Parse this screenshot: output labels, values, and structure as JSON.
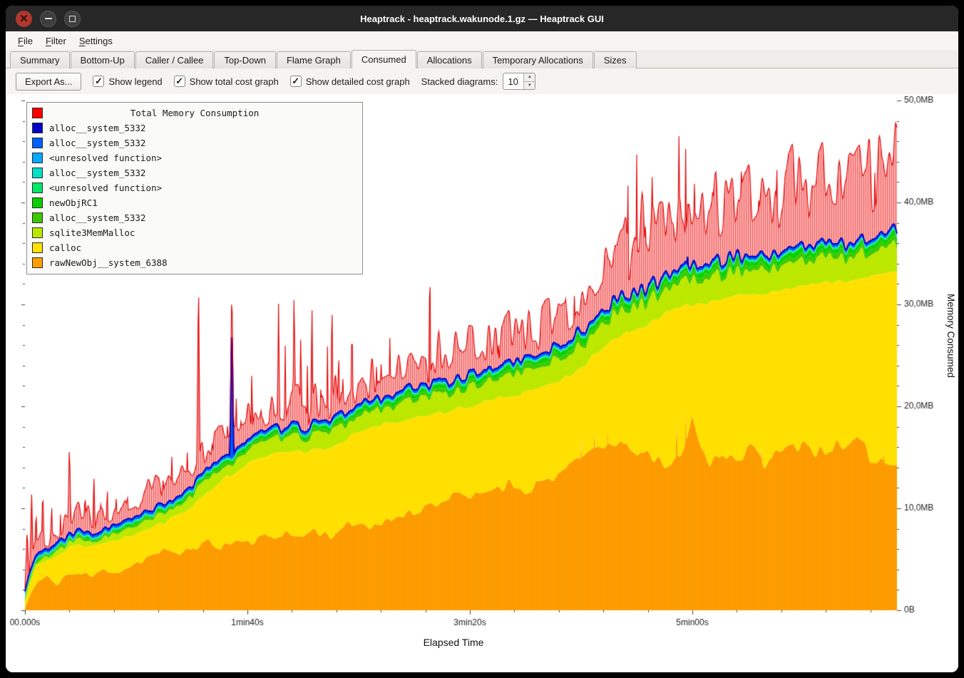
{
  "window": {
    "title": "Heaptrack - heaptrack.wakunode.1.gz — Heaptrack GUI"
  },
  "menu": {
    "items": [
      "File",
      "Filter",
      "Settings"
    ]
  },
  "tabs": {
    "items": [
      "Summary",
      "Bottom-Up",
      "Caller / Callee",
      "Top-Down",
      "Flame Graph",
      "Consumed",
      "Allocations",
      "Temporary Allocations",
      "Sizes"
    ],
    "active": "Consumed"
  },
  "toolbar": {
    "export_label": "Export As...",
    "checkboxes": [
      {
        "label": "Show legend",
        "checked": true
      },
      {
        "label": "Show total cost graph",
        "checked": true
      },
      {
        "label": "Show detailed cost graph",
        "checked": true
      }
    ],
    "stacked_label": "Stacked diagrams:",
    "stacked_value": "10"
  },
  "chart_data": {
    "type": "area",
    "stacked": true,
    "title": "Total Memory Consumption",
    "xlabel": "Elapsed Time",
    "ylabel": "Memory Consumed",
    "x_max_seconds": 392,
    "y_max_mb": 50,
    "x_ticks": [
      {
        "t": 0,
        "label": "00.000s"
      },
      {
        "t": 100,
        "label": "1min40s"
      },
      {
        "t": 200,
        "label": "3min20s"
      },
      {
        "t": 300,
        "label": "5min00s"
      }
    ],
    "x_minor_step_s": 20,
    "y_ticks": [
      {
        "mb": 0,
        "label": "0B"
      },
      {
        "mb": 10,
        "label": "10,0MB"
      },
      {
        "mb": 20,
        "label": "20,0MB"
      },
      {
        "mb": 30,
        "label": "30,0MB"
      },
      {
        "mb": 40,
        "label": "40,0MB"
      },
      {
        "mb": 50,
        "label": "50,0MB"
      }
    ],
    "y_minor_step_mb": 2,
    "legend": {
      "title": "Total Memory Consumption",
      "title_color": "#ff0000",
      "items": [
        {
          "label": "alloc__system_5332",
          "color": "#0000c8"
        },
        {
          "label": "alloc__system_5332",
          "color": "#0060ff"
        },
        {
          "label": "<unresolved function>",
          "color": "#00a8ff"
        },
        {
          "label": "alloc__system_5332",
          "color": "#00e0c8"
        },
        {
          "label": "<unresolved function>",
          "color": "#00e864"
        },
        {
          "label": "newObjRC1",
          "color": "#0ad000"
        },
        {
          "label": "alloc__system_5332",
          "color": "#3cc800"
        },
        {
          "label": "sqlite3MemMalloc",
          "color": "#bce800"
        },
        {
          "label": "calloc",
          "color": "#ffe000"
        },
        {
          "label": "rawNewObj__system_6388",
          "color": "#ffa000"
        }
      ]
    },
    "total_color": "#ff0000",
    "layers": {
      "orange_top_mb": [
        [
          0,
          0.2
        ],
        [
          3,
          1.8
        ],
        [
          6,
          2.8
        ],
        [
          10,
          3.2
        ],
        [
          14,
          2.6
        ],
        [
          18,
          3.4
        ],
        [
          24,
          3.6
        ],
        [
          30,
          3.3
        ],
        [
          36,
          4.0
        ],
        [
          42,
          3.8
        ],
        [
          48,
          4.4
        ],
        [
          55,
          5.2
        ],
        [
          62,
          5.8
        ],
        [
          68,
          5.4
        ],
        [
          75,
          6.2
        ],
        [
          82,
          6.6
        ],
        [
          88,
          6.2
        ],
        [
          95,
          6.8
        ],
        [
          100,
          6.5
        ],
        [
          108,
          7.2
        ],
        [
          115,
          7.6
        ],
        [
          122,
          7.2
        ],
        [
          130,
          7.8
        ],
        [
          138,
          7.4
        ],
        [
          145,
          8.2
        ],
        [
          152,
          8.6
        ],
        [
          158,
          8.2
        ],
        [
          165,
          9.0
        ],
        [
          172,
          9.4
        ],
        [
          180,
          10.2
        ],
        [
          188,
          10.8
        ],
        [
          195,
          11.2
        ],
        [
          202,
          11.0
        ],
        [
          210,
          12.0
        ],
        [
          218,
          12.4
        ],
        [
          225,
          11.8
        ],
        [
          232,
          12.6
        ],
        [
          240,
          13.4
        ],
        [
          247,
          14.2
        ],
        [
          254,
          15.6
        ],
        [
          260,
          16.4
        ],
        [
          266,
          15.8
        ],
        [
          272,
          16.2
        ],
        [
          278,
          15.2
        ],
        [
          284,
          14.6
        ],
        [
          290,
          13.8
        ],
        [
          296,
          16.2
        ],
        [
          300,
          18.8
        ],
        [
          304,
          15.8
        ],
        [
          308,
          14.4
        ],
        [
          314,
          15.6
        ],
        [
          320,
          14.8
        ],
        [
          326,
          15.8
        ],
        [
          332,
          14.6
        ],
        [
          338,
          15.2
        ],
        [
          344,
          16.0
        ],
        [
          350,
          16.6
        ],
        [
          356,
          15.4
        ],
        [
          362,
          16.2
        ],
        [
          368,
          15.6
        ],
        [
          374,
          16.4
        ],
        [
          380,
          15.2
        ],
        [
          386,
          14.6
        ],
        [
          392,
          14.2
        ]
      ],
      "orange_spikes": [
        [
          250,
          17.2
        ],
        [
          256,
          17.8
        ],
        [
          262,
          18.3
        ],
        [
          270,
          17.4
        ],
        [
          293,
          19.6
        ],
        [
          297,
          20.2
        ],
        [
          301,
          18.6
        ],
        [
          331,
          17.2
        ],
        [
          349,
          17.8
        ],
        [
          371,
          17.0
        ],
        [
          386,
          16.4
        ]
      ],
      "yellow_top_mb": [
        [
          0,
          0.6
        ],
        [
          2,
          2.5
        ],
        [
          5,
          4.6
        ],
        [
          10,
          5.0
        ],
        [
          15,
          5.2
        ],
        [
          20,
          6.2
        ],
        [
          26,
          6.4
        ],
        [
          32,
          6.6
        ],
        [
          40,
          6.9
        ],
        [
          48,
          7.4
        ],
        [
          55,
          7.8
        ],
        [
          62,
          8.6
        ],
        [
          70,
          9.6
        ],
        [
          78,
          10.8
        ],
        [
          85,
          12.2
        ],
        [
          90,
          13.0
        ],
        [
          95,
          13.6
        ],
        [
          100,
          14.6
        ],
        [
          105,
          15.0
        ],
        [
          112,
          15.5
        ],
        [
          120,
          15.8
        ],
        [
          128,
          15.6
        ],
        [
          135,
          16.0
        ],
        [
          142,
          16.4
        ],
        [
          150,
          17.6
        ],
        [
          158,
          18.0
        ],
        [
          165,
          18.4
        ],
        [
          172,
          18.8
        ],
        [
          180,
          19.0
        ],
        [
          188,
          19.4
        ],
        [
          196,
          19.9
        ],
        [
          204,
          20.3
        ],
        [
          212,
          20.7
        ],
        [
          220,
          21.2
        ],
        [
          228,
          21.6
        ],
        [
          236,
          22.3
        ],
        [
          244,
          22.9
        ],
        [
          252,
          24.2
        ],
        [
          258,
          25.4
        ],
        [
          264,
          26.4
        ],
        [
          270,
          27.2
        ],
        [
          278,
          27.8
        ],
        [
          285,
          28.6
        ],
        [
          292,
          29.6
        ],
        [
          298,
          30.0
        ],
        [
          306,
          30.2
        ],
        [
          314,
          30.6
        ],
        [
          322,
          30.9
        ],
        [
          330,
          31.1
        ],
        [
          338,
          31.4
        ],
        [
          346,
          31.6
        ],
        [
          354,
          31.9
        ],
        [
          362,
          32.1
        ],
        [
          370,
          32.4
        ],
        [
          378,
          32.6
        ],
        [
          385,
          32.9
        ],
        [
          392,
          33.2
        ]
      ],
      "sqlite_thickness_mb": [
        [
          0,
          0.3
        ],
        [
          30,
          0.5
        ],
        [
          60,
          0.8
        ],
        [
          85,
          1.2
        ],
        [
          120,
          1.4
        ],
        [
          160,
          1.6
        ],
        [
          200,
          1.9
        ],
        [
          250,
          2.2
        ],
        [
          300,
          2.4
        ],
        [
          392,
          2.4
        ]
      ],
      "green_thickness_mb": [
        [
          0,
          0.25
        ],
        [
          60,
          0.4
        ],
        [
          120,
          0.55
        ],
        [
          200,
          0.7
        ],
        [
          300,
          0.9
        ],
        [
          392,
          0.9
        ]
      ],
      "cyan_thickness_mb": 0.12,
      "lightblue_thickness_mb": 0.12,
      "blue_thickness_mb": 0.3,
      "blue_spikes": [
        [
          93,
          28.8
        ],
        [
          298,
          36.3
        ]
      ],
      "red_extra_mb": [
        [
          0,
          1.0
        ],
        [
          15,
          1.4
        ],
        [
          40,
          1.6
        ],
        [
          80,
          2.0
        ],
        [
          120,
          2.2
        ],
        [
          160,
          2.3
        ],
        [
          200,
          2.6
        ],
        [
          240,
          3.0
        ],
        [
          262,
          3.6
        ],
        [
          270,
          5.0
        ],
        [
          280,
          6.5
        ],
        [
          290,
          6.0
        ],
        [
          300,
          6.5
        ],
        [
          312,
          5.5
        ],
        [
          324,
          6.5
        ],
        [
          336,
          6.0
        ],
        [
          348,
          6.5
        ],
        [
          360,
          6.2
        ],
        [
          372,
          6.8
        ],
        [
          382,
          6.2
        ],
        [
          392,
          6.5
        ]
      ],
      "red_noise_amp": [
        [
          0,
          1.0
        ],
        [
          60,
          1.4
        ],
        [
          120,
          1.8
        ],
        [
          200,
          2.2
        ],
        [
          260,
          2.6
        ],
        [
          272,
          3.6
        ],
        [
          392,
          4.0
        ]
      ],
      "red_spikes": [
        [
          1,
          8
        ],
        [
          3,
          11.5
        ],
        [
          5,
          10
        ],
        [
          8,
          12
        ],
        [
          12,
          10.5
        ],
        [
          16,
          9.5
        ],
        [
          20,
          16.8
        ],
        [
          24,
          11
        ],
        [
          27,
          12
        ],
        [
          31,
          13.5
        ],
        [
          34,
          11
        ],
        [
          37,
          12.5
        ],
        [
          41,
          11
        ],
        [
          44,
          10.5
        ],
        [
          46,
          12.3
        ],
        [
          49,
          10
        ],
        [
          52,
          11.5
        ],
        [
          55,
          10.5
        ],
        [
          58,
          12
        ],
        [
          62,
          14
        ],
        [
          66,
          15.5
        ],
        [
          70,
          13.8
        ],
        [
          73,
          15.8
        ],
        [
          75,
          14
        ],
        [
          78,
          33.2
        ],
        [
          81,
          16
        ],
        [
          84,
          18
        ],
        [
          88,
          17
        ],
        [
          91,
          19
        ],
        [
          95,
          21
        ],
        [
          97,
          20
        ],
        [
          100,
          22
        ],
        [
          102,
          24.5
        ],
        [
          106,
          22
        ],
        [
          110,
          20.5
        ],
        [
          114,
          30.5
        ],
        [
          117,
          26
        ],
        [
          121,
          32.5
        ],
        [
          124,
          28
        ],
        [
          127,
          25
        ],
        [
          129,
          30.8
        ],
        [
          133,
          22
        ],
        [
          136,
          26
        ],
        [
          138,
          31.5
        ],
        [
          141,
          27
        ],
        [
          143,
          24
        ],
        [
          147,
          29.5
        ],
        [
          151,
          22.5
        ],
        [
          155,
          21.5
        ],
        [
          158,
          24
        ],
        [
          160,
          26.5
        ],
        [
          164,
          27.5
        ],
        [
          168,
          24
        ],
        [
          171,
          23
        ],
        [
          173,
          22
        ],
        [
          176,
          24
        ],
        [
          178,
          23
        ],
        [
          182,
          35.2
        ],
        [
          185,
          27
        ],
        [
          187,
          24
        ],
        [
          190,
          22.5
        ],
        [
          192,
          23
        ],
        [
          196,
          25.5
        ],
        [
          200,
          27.8
        ],
        [
          204,
          26
        ],
        [
          208,
          24.5
        ],
        [
          211,
          26
        ],
        [
          213,
          28.5
        ],
        [
          217,
          25.5
        ],
        [
          221,
          24
        ],
        [
          224,
          26
        ],
        [
          226,
          27.5
        ],
        [
          230,
          24.5
        ],
        [
          234,
          23.5
        ],
        [
          237,
          24
        ],
        [
          239,
          25
        ],
        [
          243,
          31.5
        ],
        [
          247,
          31.8
        ],
        [
          251,
          30.5
        ],
        [
          255,
          32
        ],
        [
          259,
          29.5
        ],
        [
          263,
          34.3
        ],
        [
          267,
          30
        ],
        [
          271,
          44.5
        ],
        [
          275,
          44.8
        ],
        [
          279,
          40
        ],
        [
          282,
          44.6
        ],
        [
          286,
          35
        ],
        [
          290,
          38
        ],
        [
          294,
          46.5
        ],
        [
          297,
          45.8
        ],
        [
          301,
          44
        ],
        [
          305,
          41.5
        ],
        [
          309,
          43.5
        ],
        [
          313,
          37
        ],
        [
          317,
          36
        ],
        [
          322,
          44.5
        ],
        [
          326,
          43.8
        ],
        [
          330,
          44.2
        ],
        [
          334,
          40
        ],
        [
          338,
          44
        ],
        [
          342,
          44.5
        ],
        [
          346,
          38
        ],
        [
          350,
          43.5
        ],
        [
          354,
          37.5
        ],
        [
          358,
          44.3
        ],
        [
          362,
          42
        ],
        [
          366,
          44
        ],
        [
          370,
          38.5
        ],
        [
          374,
          44.2
        ],
        [
          378,
          42.5
        ],
        [
          382,
          44.6
        ],
        [
          386,
          41
        ],
        [
          390,
          44.8
        ]
      ]
    }
  }
}
